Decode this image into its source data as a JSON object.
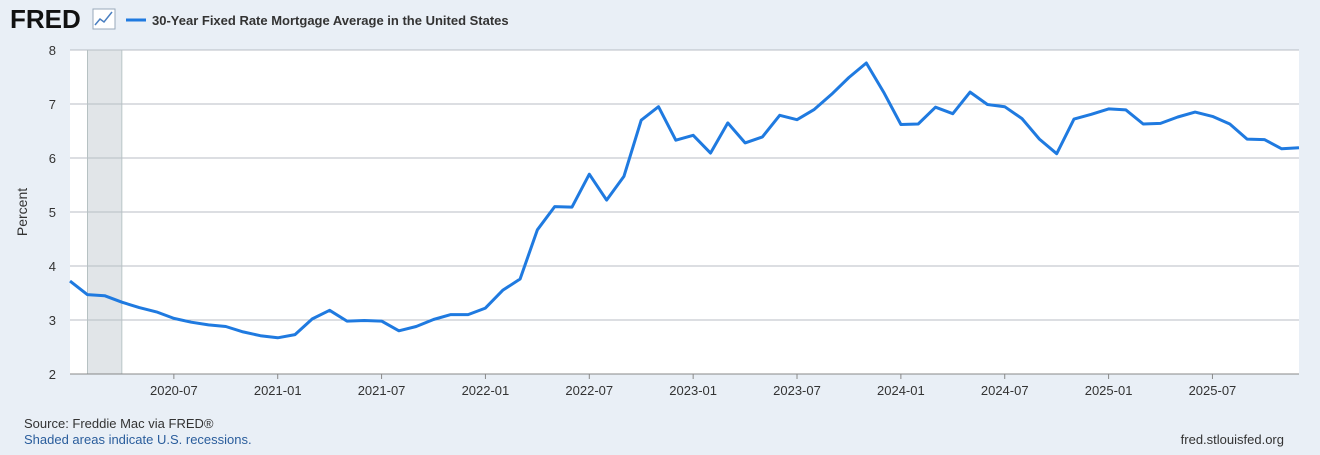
{
  "brand": "FRED",
  "chart_data": {
    "type": "line",
    "title": "30-Year Fixed Rate Mortgage Average in the United States",
    "y_label": "Percent",
    "x": [
      "2020-01",
      "2020-02",
      "2020-03",
      "2020-04",
      "2020-05",
      "2020-06",
      "2020-07",
      "2020-08",
      "2020-09",
      "2020-10",
      "2020-11",
      "2020-12",
      "2021-01",
      "2021-02",
      "2021-03",
      "2021-04",
      "2021-05",
      "2021-06",
      "2021-07",
      "2021-08",
      "2021-09",
      "2021-10",
      "2021-11",
      "2021-12",
      "2022-01",
      "2022-02",
      "2022-03",
      "2022-04",
      "2022-05",
      "2022-06",
      "2022-07",
      "2022-08",
      "2022-09",
      "2022-10",
      "2022-11",
      "2022-12",
      "2023-01",
      "2023-02",
      "2023-03",
      "2023-04",
      "2023-05",
      "2023-06",
      "2023-07",
      "2023-08",
      "2023-09",
      "2023-10",
      "2023-11",
      "2023-12",
      "2024-01",
      "2024-02",
      "2024-03",
      "2024-04",
      "2024-05",
      "2024-06",
      "2024-07",
      "2024-08",
      "2024-09",
      "2024-10",
      "2024-11",
      "2024-12",
      "2025-01",
      "2025-02",
      "2025-03",
      "2025-04",
      "2025-05",
      "2025-06",
      "2025-07",
      "2025-08",
      "2025-09",
      "2025-10",
      "2025-11",
      "2025-12"
    ],
    "series": [
      {
        "name": "30-Year Fixed Rate Mortgage Average in the United States",
        "color": "#1f7ae0",
        "values": [
          3.72,
          3.47,
          3.45,
          3.33,
          3.23,
          3.15,
          3.03,
          2.96,
          2.91,
          2.88,
          2.78,
          2.71,
          2.67,
          2.73,
          3.02,
          3.18,
          2.98,
          2.99,
          2.98,
          2.8,
          2.88,
          3.01,
          3.1,
          3.1,
          3.22,
          3.55,
          3.76,
          4.67,
          5.1,
          5.09,
          5.7,
          5.22,
          5.66,
          6.7,
          6.95,
          6.33,
          6.42,
          6.09,
          6.65,
          6.28,
          6.39,
          6.79,
          6.71,
          6.9,
          7.18,
          7.49,
          7.76,
          7.22,
          6.62,
          6.63,
          6.94,
          6.82,
          7.22,
          6.99,
          6.95,
          6.73,
          6.35,
          6.08,
          6.72,
          6.81,
          6.91,
          6.89,
          6.63,
          6.64,
          6.76,
          6.85,
          6.77,
          6.63,
          6.35,
          6.34,
          6.17,
          6.19
        ]
      }
    ],
    "xlim": [
      "2020-01",
      "2025-12"
    ],
    "xticks": [
      "2020-07",
      "2021-01",
      "2021-07",
      "2022-01",
      "2022-07",
      "2023-01",
      "2023-07",
      "2024-01",
      "2024-07",
      "2025-01",
      "2025-07"
    ],
    "ylim": [
      2,
      8
    ],
    "yticks": [
      2,
      3,
      4,
      5,
      6,
      7,
      8
    ],
    "grid": true,
    "recessions": [
      [
        "2020-02",
        "2020-04"
      ]
    ],
    "recession_color": "#e1e5e8"
  },
  "footer": {
    "source": "Source: Freddie Mac via FRED®",
    "note": "Shaded areas indicate U.S. recessions.",
    "site": "fred.stlouisfed.org"
  }
}
